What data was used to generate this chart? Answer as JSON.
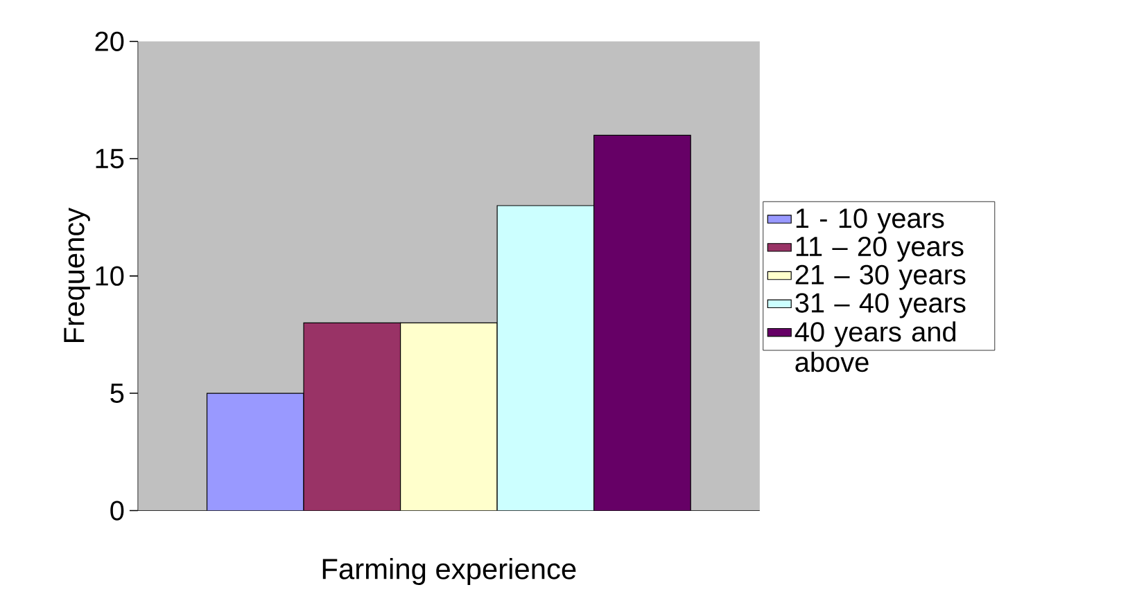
{
  "chart_data": {
    "type": "bar",
    "xlabel": "Farming experience",
    "ylabel": "Frequency",
    "categories": [
      null
    ],
    "series": [
      {
        "name": "1 - 10 years",
        "color": "#9999ff",
        "values": [
          5
        ]
      },
      {
        "name": "11 – 20 years",
        "color": "#993366",
        "values": [
          8
        ]
      },
      {
        "name": "21 – 30 years",
        "color": "#ffffcc",
        "values": [
          8
        ]
      },
      {
        "name": "31 – 40 years",
        "color": "#ccffff",
        "values": [
          13
        ]
      },
      {
        "name": "40 years and above",
        "color": "#660066",
        "values": [
          16
        ]
      }
    ],
    "ylim": [
      0,
      20
    ],
    "yticks": [
      0,
      5,
      10,
      15,
      20
    ],
    "grid": false,
    "legend": "right"
  }
}
